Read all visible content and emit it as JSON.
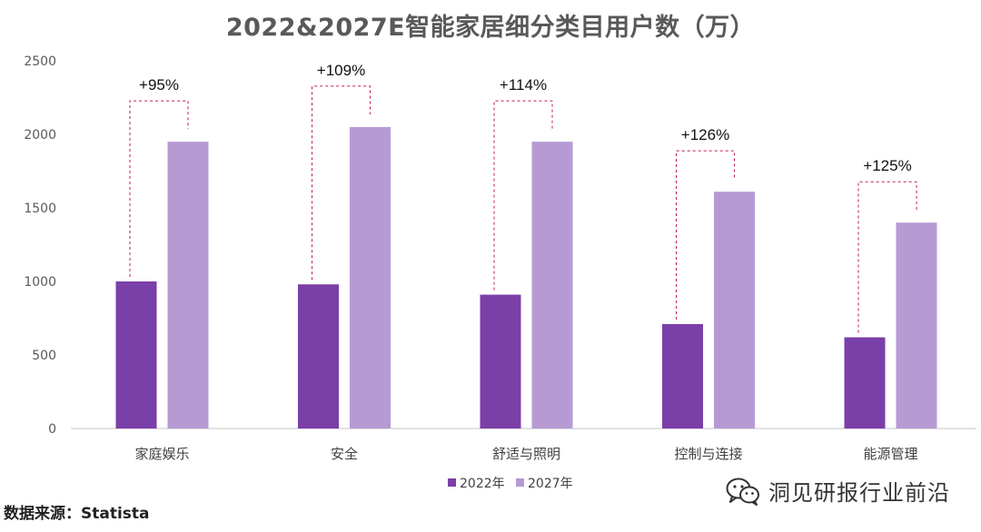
{
  "chart_data": {
    "type": "bar",
    "title": "2022&2027E智能家居细分类目用户数（万）",
    "categories": [
      "家庭娱乐",
      "安全",
      "舒适与照明",
      "控制与连接",
      "能源管理"
    ],
    "series": [
      {
        "name": "2022年",
        "color": "#7B3FA8",
        "values": [
          1000,
          980,
          910,
          710,
          620
        ]
      },
      {
        "name": "2027年",
        "color": "#B79AD4",
        "values": [
          1950,
          2050,
          1950,
          1610,
          1400
        ]
      }
    ],
    "growth_labels": [
      "+95%",
      "+109%",
      "+114%",
      "+126%",
      "+125%"
    ],
    "ylim": [
      0,
      2500
    ],
    "yticks": [
      0,
      500,
      1000,
      1500,
      2000,
      2500
    ],
    "xlabel": "",
    "ylabel": "",
    "legend": "bottom-center",
    "grid": false,
    "bracket_color": "#C2185B"
  },
  "source_text": "数据来源：Statista",
  "watermark": {
    "icon": "wechat-icon",
    "text": "洞见研报行业前沿"
  }
}
